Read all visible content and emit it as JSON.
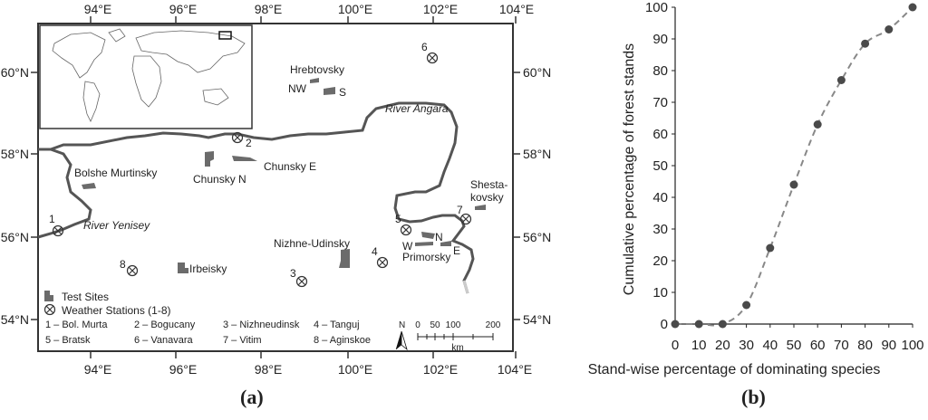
{
  "panel_a": {
    "caption": "(a)",
    "top_lon_labels": [
      "94°E",
      "96°E",
      "98°E",
      "100°E",
      "102°E",
      "104°E"
    ],
    "bottom_lon_labels": [
      "94°E",
      "96°E",
      "98°E",
      "100°E",
      "102°E",
      "104°E"
    ],
    "left_lat_labels": [
      "60°N",
      "58°N",
      "56°N",
      "54°N"
    ],
    "right_lat_labels": [
      "60°N",
      "58°N",
      "56°N",
      "54°N"
    ],
    "river_labels": {
      "angara": "River Angara",
      "yenisey": "River Yenisey"
    },
    "site_labels": [
      "Hrebtovsky",
      "NW",
      "S",
      "Chunsky N",
      "Chunsky E",
      "Bolshe Murtinsky",
      "Shesta-",
      "kovsky",
      "Nizhne-Udinsky",
      "Irbeisky",
      "Primorsky",
      "N",
      "W",
      "E"
    ],
    "station_numbers": [
      "1",
      "2",
      "3",
      "4",
      "5",
      "6",
      "7",
      "8"
    ],
    "legend": {
      "test_sites": "Test Sites",
      "weather_stations": "Weather Stations (1-8)",
      "stations": [
        "1 – Bol. Murta",
        "2 – Bogucany",
        "3 – Nizhneudinsk",
        "4 – Tanguj",
        "5 – Bratsk",
        "6 – Vanavara",
        "7 – Vitim",
        "8 – Aginskoe"
      ]
    },
    "scale": {
      "north": "N",
      "ticks": [
        "0",
        "50",
        "100",
        "200"
      ],
      "unit": "km"
    }
  },
  "panel_b": {
    "caption": "(b)",
    "chart_data": {
      "type": "line",
      "xlabel": "Stand-wise percentage of dominating species",
      "ylabel": "Cumulative percentage of forest stands",
      "xlim": [
        0,
        100
      ],
      "ylim": [
        0,
        100
      ],
      "x_ticks": [
        "0",
        "10",
        "20",
        "30",
        "40",
        "50",
        "60",
        "70",
        "80",
        "90",
        "100"
      ],
      "y_ticks": [
        "0",
        "10",
        "20",
        "30",
        "40",
        "50",
        "60",
        "70",
        "80",
        "90",
        "100"
      ],
      "x": [
        0,
        10,
        20,
        30,
        40,
        50,
        60,
        70,
        80,
        90,
        100
      ],
      "y": [
        0,
        0,
        0,
        6,
        24,
        44,
        63,
        77,
        88.5,
        93,
        100
      ],
      "marker_color": "#4a4a4a",
      "line_color": "#888888",
      "line_style": "dashed"
    }
  }
}
